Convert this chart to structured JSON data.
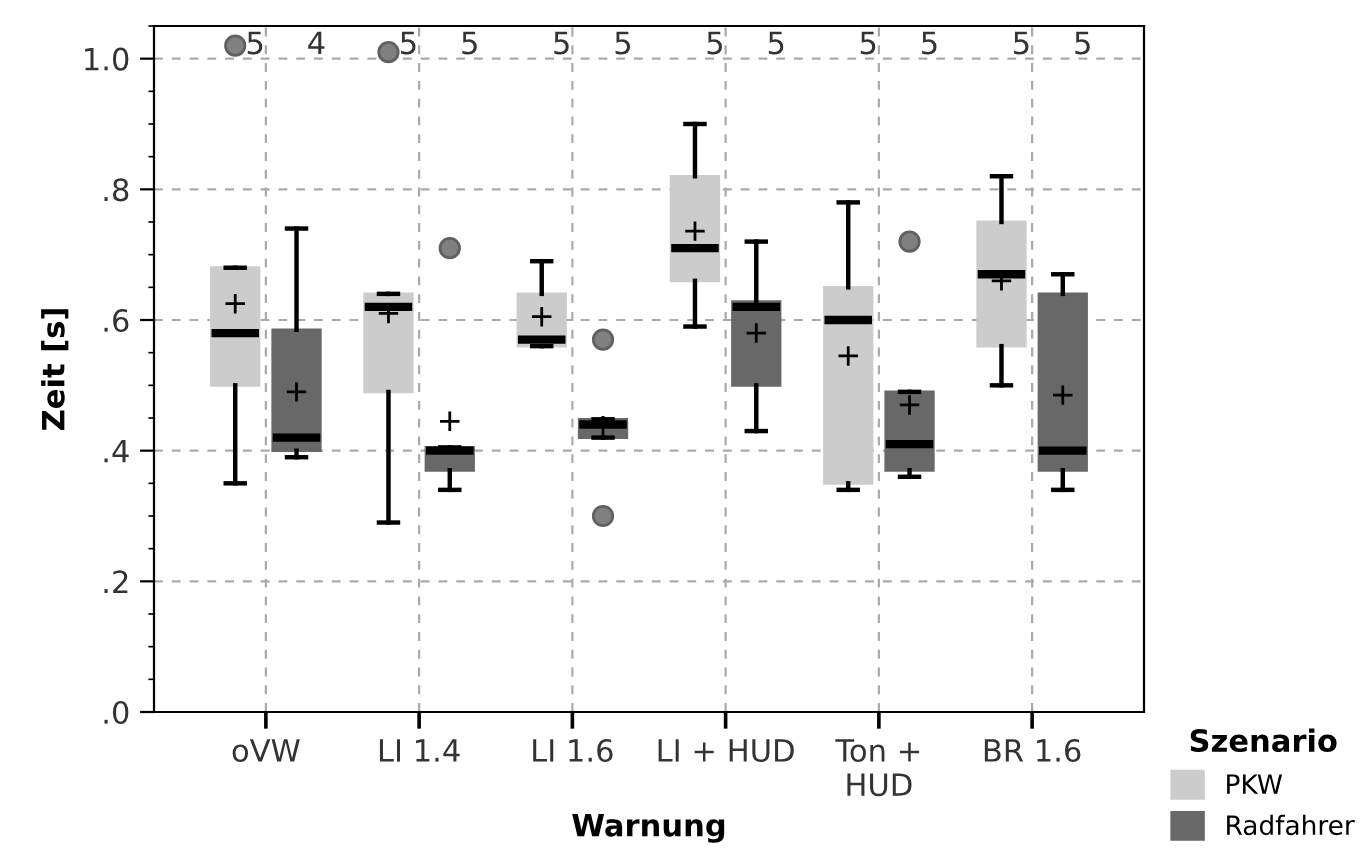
{
  "chart_data": {
    "type": "box",
    "xlabel": "Warnung",
    "ylabel": "Zeit [s]",
    "legend_title": "Szenario",
    "legend": "bottom right",
    "grid": true,
    "categories": [
      "oVW",
      "LI 1.4",
      "LI 1.6",
      "LI + HUD",
      "Ton +\nHUD",
      "BR 1.6"
    ],
    "ylim": [
      0,
      1.05
    ],
    "yticks": [
      {
        "value": 0,
        "label": ".0"
      },
      {
        "value": 0.2,
        "label": ".2"
      },
      {
        "value": 0.4,
        "label": ".4"
      },
      {
        "value": 0.6,
        "label": ".6"
      },
      {
        "value": 0.8,
        "label": ".8"
      },
      {
        "value": 1.0,
        "label": "1.0"
      }
    ],
    "series": [
      {
        "name": "PKW",
        "color": "#cccccc",
        "boxes": [
          {
            "low": 0.35,
            "q1": 0.5,
            "median": 0.58,
            "q3": 0.68,
            "high": 0.68,
            "mean": 0.625,
            "outliers": [
              1.02
            ]
          },
          {
            "low": 0.29,
            "q1": 0.49,
            "median": 0.62,
            "q3": 0.64,
            "high": 0.64,
            "mean": 0.61,
            "outliers": [
              1.01
            ]
          },
          {
            "low": 0.56,
            "q1": 0.56,
            "median": 0.57,
            "q3": 0.64,
            "high": 0.69,
            "mean": 0.605
          },
          {
            "low": 0.59,
            "q1": 0.66,
            "median": 0.71,
            "q3": 0.82,
            "high": 0.9,
            "mean": 0.736
          },
          {
            "low": 0.34,
            "q1": 0.35,
            "median": 0.6,
            "q3": 0.65,
            "high": 0.78,
            "mean": 0.545
          },
          {
            "low": 0.5,
            "q1": 0.56,
            "median": 0.67,
            "q3": 0.75,
            "high": 0.82,
            "mean": 0.66
          }
        ]
      },
      {
        "name": "Radfahrer",
        "color": "#686868",
        "boxes": [
          {
            "low": 0.39,
            "q1": 0.4,
            "median": 0.42,
            "q3": 0.585,
            "high": 0.74,
            "mean": 0.49
          },
          {
            "low": 0.34,
            "q1": 0.37,
            "median": 0.4,
            "q3": 0.405,
            "high": 0.405,
            "mean": 0.445,
            "outliers": [
              0.71
            ]
          },
          {
            "low": 0.42,
            "q1": 0.42,
            "median": 0.44,
            "q3": 0.448,
            "high": 0.448,
            "mean": 0.438,
            "outliers": [
              0.57,
              0.3
            ]
          },
          {
            "low": 0.43,
            "q1": 0.5,
            "median": 0.62,
            "q3": 0.628,
            "high": 0.72,
            "mean": 0.58
          },
          {
            "low": 0.36,
            "q1": 0.37,
            "median": 0.41,
            "q3": 0.49,
            "high": 0.49,
            "mean": 0.47,
            "outliers": [
              0.72
            ]
          },
          {
            "low": 0.34,
            "q1": 0.37,
            "median": 0.4,
            "q3": 0.64,
            "high": 0.67,
            "mean": 0.485
          }
        ]
      }
    ],
    "annotations": [
      "5",
      "4",
      "5",
      "5",
      "5",
      "5",
      "5",
      "5",
      "5",
      "5",
      "5",
      "5"
    ]
  }
}
